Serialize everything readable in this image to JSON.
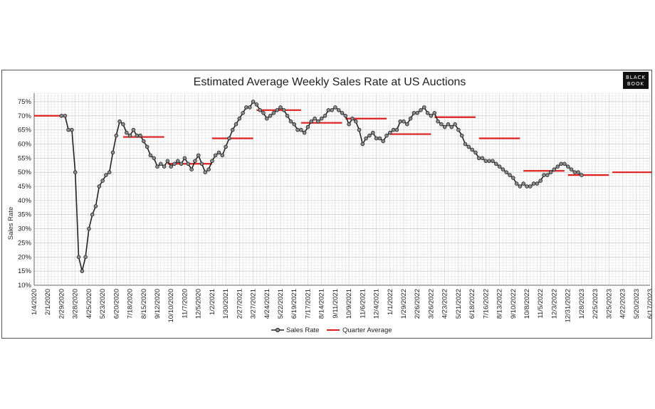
{
  "chart_data": {
    "type": "line",
    "title": "Estimated Average Weekly Sales Rate at US Auctions",
    "ylabel": "Sales Rate",
    "xlabel": "",
    "ylim": [
      10,
      78
    ],
    "y_ticks": [
      "10%",
      "15%",
      "20%",
      "25%",
      "30%",
      "35%",
      "40%",
      "45%",
      "50%",
      "55%",
      "60%",
      "65%",
      "70%",
      "75%"
    ],
    "y_tick_values": [
      10,
      15,
      20,
      25,
      30,
      35,
      40,
      45,
      50,
      55,
      60,
      65,
      70,
      75
    ],
    "x_ticks": [
      "1/4/2020",
      "2/1/2020",
      "2/29/2020",
      "3/28/2020",
      "4/25/2020",
      "5/23/2020",
      "6/20/2020",
      "7/18/2020",
      "8/15/2020",
      "9/12/2020",
      "10/10/2020",
      "11/7/2020",
      "12/5/2020",
      "1/2/2021",
      "1/30/2021",
      "2/27/2021",
      "3/27/2021",
      "4/24/2021",
      "5/22/2021",
      "6/19/2021",
      "7/17/2021",
      "8/14/2021",
      "9/11/2021",
      "10/9/2021",
      "11/6/2021",
      "12/4/2021",
      "1/1/2022",
      "1/29/2022",
      "2/26/2022",
      "3/26/2022",
      "4/23/2022",
      "5/21/2022",
      "6/18/2022",
      "7/16/2022",
      "8/13/2022",
      "9/10/2022",
      "10/8/2022",
      "11/5/2022",
      "12/3/2022",
      "12/31/2022",
      "1/28/2023",
      "2/25/2023",
      "3/25/2023",
      "4/22/2023",
      "5/20/2023",
      "6/17/2023"
    ],
    "legend_position": "bottom",
    "grid": true,
    "series": [
      {
        "name": "Sales Rate",
        "color": "#222222",
        "marker_color": "#8a8a8a",
        "start_week": 8,
        "values": [
          70,
          70,
          65,
          65,
          50,
          20,
          15,
          20,
          30,
          35,
          38,
          45,
          47,
          49,
          50,
          57,
          63,
          68,
          67,
          64,
          63,
          65,
          63,
          63,
          61,
          59,
          56,
          55,
          52,
          53,
          52,
          54,
          52,
          53,
          54,
          53,
          55,
          53,
          51,
          54,
          56,
          53,
          50,
          51,
          54,
          56,
          57,
          56,
          59,
          62,
          65,
          67,
          69,
          71,
          73,
          73,
          75,
          74,
          72,
          71,
          69,
          70,
          71,
          72,
          73,
          72,
          70,
          68,
          67,
          65,
          65,
          64,
          66,
          68,
          69,
          68,
          69,
          70,
          72,
          72,
          73,
          72,
          71,
          70,
          67,
          69,
          68,
          65,
          60,
          62,
          63,
          64,
          62,
          62,
          61,
          63,
          64,
          65,
          65,
          68,
          68,
          67,
          69,
          71,
          71,
          72,
          73,
          71,
          70,
          71,
          68,
          67,
          66,
          67,
          66,
          67,
          65,
          63,
          60,
          59,
          58,
          57,
          55,
          55,
          54,
          54,
          54,
          53,
          52,
          51,
          50,
          49,
          48,
          46,
          45,
          46,
          45,
          45,
          46,
          46,
          47,
          49,
          49,
          50,
          51,
          52,
          53,
          53,
          52,
          51,
          50,
          50,
          49
        ]
      },
      {
        "name": "Quarter Average",
        "color": "#dd1f1f",
        "segments": [
          {
            "start": 0,
            "end": 8,
            "value": 70
          },
          {
            "start": 26,
            "end": 38,
            "value": 62.5
          },
          {
            "start": 39,
            "end": 52,
            "value": 53
          },
          {
            "start": 52,
            "end": 64,
            "value": 62
          },
          {
            "start": 65,
            "end": 78,
            "value": 72
          },
          {
            "start": 78,
            "end": 90,
            "value": 67.5
          },
          {
            "start": 91,
            "end": 103,
            "value": 69
          },
          {
            "start": 104,
            "end": 116,
            "value": 63.5
          },
          {
            "start": 117,
            "end": 129,
            "value": 69.5
          },
          {
            "start": 130,
            "end": 142,
            "value": 62
          },
          {
            "start": 143,
            "end": 155,
            "value": 50.5
          },
          {
            "start": 156,
            "end": 168,
            "value": 49
          },
          {
            "start": 169,
            "end": 181,
            "value": 50
          }
        ]
      }
    ]
  },
  "logo": {
    "line1": "BLACK",
    "line2": "BOOK"
  }
}
